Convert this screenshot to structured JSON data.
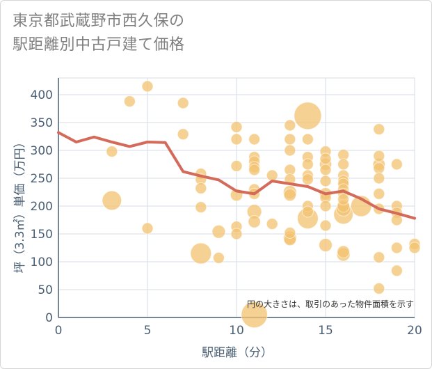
{
  "title": [
    "東京都武蔵野市西久保の",
    "駅距離別中古戸建て価格"
  ],
  "chart_data": {
    "type": "scatter",
    "xlabel": "駅距離（分）",
    "ylabel": "坪（3.3㎡）単価（万円）",
    "xlim": [
      0,
      20
    ],
    "ylim": [
      0,
      430
    ],
    "x_ticks": [
      "0",
      "5",
      "10",
      "15",
      "20"
    ],
    "y_ticks": [
      "0",
      "50",
      "100",
      "150",
      "200",
      "250",
      "300",
      "350",
      "400"
    ],
    "x_tick_values": [
      0,
      5,
      10,
      15,
      20
    ],
    "y_tick_values": [
      0,
      50,
      100,
      150,
      200,
      250,
      300,
      350,
      400
    ],
    "grid": true,
    "note": "円の大きさは、取引のあった物件面積を示す",
    "colors": {
      "bubble": "#f3c170",
      "line": "#d46a5a",
      "grid": "#d5dde6",
      "axis": "#4a5e73"
    },
    "points": [
      {
        "x": 3,
        "y": 298,
        "s": 1
      },
      {
        "x": 3,
        "y": 210,
        "s": 3
      },
      {
        "x": 4,
        "y": 388,
        "s": 1
      },
      {
        "x": 5,
        "y": 415,
        "s": 1
      },
      {
        "x": 5,
        "y": 160,
        "s": 1
      },
      {
        "x": 7,
        "y": 385,
        "s": 1
      },
      {
        "x": 7,
        "y": 329,
        "s": 1
      },
      {
        "x": 8,
        "y": 258,
        "s": 1
      },
      {
        "x": 8,
        "y": 248,
        "s": 1
      },
      {
        "x": 8,
        "y": 232,
        "s": 1
      },
      {
        "x": 8,
        "y": 198,
        "s": 1
      },
      {
        "x": 8,
        "y": 115,
        "s": 3.5
      },
      {
        "x": 9,
        "y": 154,
        "s": 1.4
      },
      {
        "x": 9,
        "y": 107,
        "s": 1
      },
      {
        "x": 10,
        "y": 342,
        "s": 1
      },
      {
        "x": 10,
        "y": 320,
        "s": 1
      },
      {
        "x": 10,
        "y": 272,
        "s": 1
      },
      {
        "x": 10,
        "y": 220,
        "s": 1.2
      },
      {
        "x": 10,
        "y": 163,
        "s": 1
      },
      {
        "x": 10,
        "y": 150,
        "s": 1
      },
      {
        "x": 11,
        "y": 320,
        "s": 1
      },
      {
        "x": 11,
        "y": 288,
        "s": 1
      },
      {
        "x": 11,
        "y": 280,
        "s": 1
      },
      {
        "x": 11,
        "y": 270,
        "s": 1
      },
      {
        "x": 11,
        "y": 265,
        "s": 1
      },
      {
        "x": 11,
        "y": 230,
        "s": 1
      },
      {
        "x": 11,
        "y": 222,
        "s": 1
      },
      {
        "x": 11,
        "y": 190,
        "s": 1.7
      },
      {
        "x": 11,
        "y": 172,
        "s": 1.2
      },
      {
        "x": 11,
        "y": 5,
        "s": 5.5
      },
      {
        "x": 12,
        "y": 255,
        "s": 1
      },
      {
        "x": 12,
        "y": 168,
        "s": 1
      },
      {
        "x": 13,
        "y": 345,
        "s": 1
      },
      {
        "x": 13,
        "y": 320,
        "s": 1
      },
      {
        "x": 13,
        "y": 300,
        "s": 1
      },
      {
        "x": 13,
        "y": 265,
        "s": 1
      },
      {
        "x": 13,
        "y": 248,
        "s": 1
      },
      {
        "x": 13,
        "y": 225,
        "s": 1.4
      },
      {
        "x": 13,
        "y": 220,
        "s": 1.2
      },
      {
        "x": 13,
        "y": 152,
        "s": 1
      },
      {
        "x": 13,
        "y": 143,
        "s": 1.4
      },
      {
        "x": 13,
        "y": 140,
        "s": 1.2
      },
      {
        "x": 14,
        "y": 362,
        "s": 6
      },
      {
        "x": 14,
        "y": 320,
        "s": 1
      },
      {
        "x": 14,
        "y": 288,
        "s": 1
      },
      {
        "x": 14,
        "y": 275,
        "s": 1
      },
      {
        "x": 14,
        "y": 255,
        "s": 1
      },
      {
        "x": 14,
        "y": 248,
        "s": 1
      },
      {
        "x": 14,
        "y": 200,
        "s": 1
      },
      {
        "x": 14,
        "y": 190,
        "s": 1
      },
      {
        "x": 14,
        "y": 178,
        "s": 3.5
      },
      {
        "x": 15,
        "y": 298,
        "s": 1
      },
      {
        "x": 15,
        "y": 285,
        "s": 1
      },
      {
        "x": 15,
        "y": 275,
        "s": 1.2
      },
      {
        "x": 15,
        "y": 265,
        "s": 1
      },
      {
        "x": 15,
        "y": 245,
        "s": 1
      },
      {
        "x": 15,
        "y": 222,
        "s": 1.2
      },
      {
        "x": 15,
        "y": 215,
        "s": 1
      },
      {
        "x": 15,
        "y": 200,
        "s": 1
      },
      {
        "x": 15,
        "y": 165,
        "s": 1
      },
      {
        "x": 15,
        "y": 130,
        "s": 1.4
      },
      {
        "x": 16,
        "y": 292,
        "s": 1
      },
      {
        "x": 16,
        "y": 275,
        "s": 1
      },
      {
        "x": 16,
        "y": 255,
        "s": 1
      },
      {
        "x": 16,
        "y": 245,
        "s": 1
      },
      {
        "x": 16,
        "y": 240,
        "s": 1
      },
      {
        "x": 16,
        "y": 230,
        "s": 1
      },
      {
        "x": 16,
        "y": 222,
        "s": 1
      },
      {
        "x": 16,
        "y": 212,
        "s": 1
      },
      {
        "x": 16,
        "y": 200,
        "s": 1.2
      },
      {
        "x": 16,
        "y": 195,
        "s": 1.7
      },
      {
        "x": 16,
        "y": 185,
        "s": 3
      },
      {
        "x": 16,
        "y": 118,
        "s": 1.2
      },
      {
        "x": 16,
        "y": 113,
        "s": 1.4
      },
      {
        "x": 17,
        "y": 200,
        "s": 3.5
      },
      {
        "x": 18,
        "y": 338,
        "s": 1
      },
      {
        "x": 18,
        "y": 290,
        "s": 1
      },
      {
        "x": 18,
        "y": 275,
        "s": 1.2
      },
      {
        "x": 18,
        "y": 268,
        "s": 1
      },
      {
        "x": 18,
        "y": 250,
        "s": 1
      },
      {
        "x": 18,
        "y": 222,
        "s": 1
      },
      {
        "x": 18,
        "y": 195,
        "s": 1
      },
      {
        "x": 18,
        "y": 108,
        "s": 1
      },
      {
        "x": 18,
        "y": 52,
        "s": 1
      },
      {
        "x": 19,
        "y": 275,
        "s": 1
      },
      {
        "x": 19,
        "y": 200,
        "s": 1
      },
      {
        "x": 19,
        "y": 188,
        "s": 1
      },
      {
        "x": 19,
        "y": 175,
        "s": 1
      },
      {
        "x": 19,
        "y": 125,
        "s": 1
      },
      {
        "x": 19,
        "y": 84,
        "s": 1
      },
      {
        "x": 20,
        "y": 132,
        "s": 1
      },
      {
        "x": 20,
        "y": 125,
        "s": 1
      }
    ],
    "line": {
      "x": [
        0,
        1,
        2,
        3,
        4,
        5,
        6,
        7,
        8,
        9,
        10,
        11,
        12,
        13,
        14,
        15,
        16,
        17,
        18,
        19,
        20
      ],
      "y": [
        332,
        315,
        324,
        315,
        307,
        315,
        314,
        262,
        254,
        247,
        227,
        222,
        245,
        240,
        235,
        222,
        227,
        213,
        195,
        187,
        178
      ]
    }
  }
}
